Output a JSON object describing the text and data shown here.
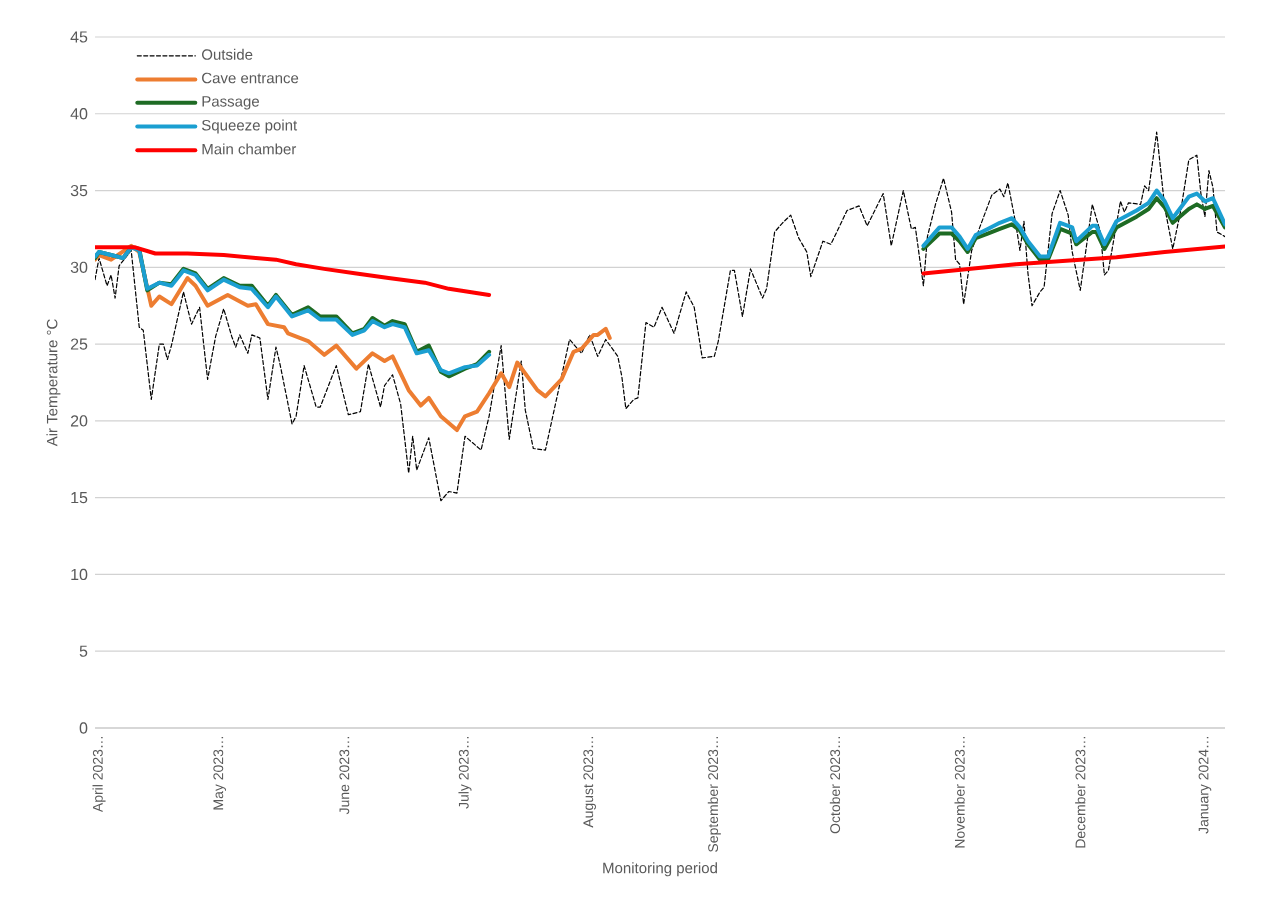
{
  "chart_data": {
    "type": "line",
    "xlabel": "Monitoring period",
    "ylabel": "Air Temperature °C",
    "xlim": [
      "2023-03-31",
      "2024-01-06"
    ],
    "ylim": [
      0,
      45
    ],
    "yticks": [
      0,
      5,
      10,
      15,
      20,
      25,
      30,
      35,
      40,
      45
    ],
    "xticks": [
      {
        "value": "2023-04-01",
        "label": "April 2023…"
      },
      {
        "value": "2023-05-01",
        "label": "May 2023…"
      },
      {
        "value": "2023-06-01",
        "label": "June 2023…"
      },
      {
        "value": "2023-07-01",
        "label": "July 2023…"
      },
      {
        "value": "2023-08-01",
        "label": "August 2023…"
      },
      {
        "value": "2023-09-01",
        "label": "September 2023…"
      },
      {
        "value": "2023-10-01",
        "label": "October 2023…"
      },
      {
        "value": "2023-11-01",
        "label": "November 2023…"
      },
      {
        "value": "2023-12-01",
        "label": "December 2023…"
      },
      {
        "value": "2024-01-01",
        "label": "January 2024…"
      }
    ],
    "grid": "y",
    "legend": "top left",
    "series": [
      {
        "name": "Outside",
        "color": "#000000",
        "line_style": "dashed",
        "x": [
          "2023-03-31",
          "2023-04-01",
          "2023-04-03",
          "2023-04-04",
          "2023-04-05",
          "2023-04-06",
          "2023-04-09",
          "2023-04-11",
          "2023-04-12",
          "2023-04-14",
          "2023-04-16",
          "2023-04-17",
          "2023-04-18",
          "2023-04-19",
          "2023-04-22",
          "2023-04-24",
          "2023-04-26",
          "2023-04-28",
          "2023-04-30",
          "2023-05-02",
          "2023-05-04",
          "2023-05-05",
          "2023-05-06",
          "2023-05-08",
          "2023-05-09",
          "2023-05-11",
          "2023-05-13",
          "2023-05-15",
          "2023-05-16",
          "2023-05-19",
          "2023-05-20",
          "2023-05-22",
          "2023-05-25",
          "2023-05-26",
          "2023-05-30",
          "2023-06-02",
          "2023-06-05",
          "2023-06-07",
          "2023-06-10",
          "2023-06-11",
          "2023-06-13",
          "2023-06-15",
          "2023-06-17",
          "2023-06-18",
          "2023-06-19",
          "2023-06-22",
          "2023-06-25",
          "2023-06-27",
          "2023-06-29",
          "2023-07-01",
          "2023-07-05",
          "2023-07-07",
          "2023-07-10",
          "2023-07-12",
          "2023-07-15",
          "2023-07-16",
          "2023-07-18",
          "2023-07-21",
          "2023-07-27",
          "2023-07-28",
          "2023-07-30",
          "2023-08-01",
          "2023-08-03",
          "2023-08-05",
          "2023-08-08",
          "2023-08-09",
          "2023-08-10",
          "2023-08-12",
          "2023-08-13",
          "2023-08-15",
          "2023-08-17",
          "2023-08-19",
          "2023-08-22",
          "2023-08-25",
          "2023-08-27",
          "2023-08-29",
          "2023-09-01",
          "2023-09-02",
          "2023-09-05",
          "2023-09-06",
          "2023-09-08",
          "2023-09-10",
          "2023-09-13",
          "2023-09-14",
          "2023-09-16",
          "2023-09-18",
          "2023-09-20",
          "2023-09-22",
          "2023-09-24",
          "2023-09-25",
          "2023-09-28",
          "2023-09-30",
          "2023-10-04",
          "2023-10-07",
          "2023-10-09",
          "2023-10-13",
          "2023-10-15",
          "2023-10-18",
          "2023-10-20",
          "2023-10-21",
          "2023-10-23",
          "2023-10-24",
          "2023-10-26",
          "2023-10-28",
          "2023-10-30",
          "2023-10-31",
          "2023-11-01",
          "2023-11-02",
          "2023-11-04",
          "2023-11-06",
          "2023-11-09",
          "2023-11-11",
          "2023-11-12",
          "2023-11-13",
          "2023-11-15",
          "2023-11-16",
          "2023-11-17",
          "2023-11-18",
          "2023-11-19",
          "2023-11-21",
          "2023-11-22",
          "2023-11-24",
          "2023-11-26",
          "2023-11-28",
          "2023-11-29",
          "2023-12-01",
          "2023-12-04",
          "2023-12-06",
          "2023-12-07",
          "2023-12-08",
          "2023-12-11",
          "2023-12-12",
          "2023-12-13",
          "2023-12-16",
          "2023-12-17",
          "2023-12-18",
          "2023-12-20",
          "2023-12-22",
          "2023-12-24",
          "2023-12-26",
          "2023-12-28",
          "2023-12-30",
          "2023-12-31",
          "2024-01-01",
          "2024-01-02",
          "2024-01-03",
          "2024-01-04",
          "2024-01-06"
        ],
        "values": [
          29.2,
          30.6,
          28.8,
          29.5,
          28.0,
          30.1,
          31.1,
          26.1,
          25.9,
          21.4,
          25.0,
          25.0,
          24.0,
          24.9,
          28.4,
          26.3,
          27.4,
          22.7,
          25.5,
          27.3,
          25.5,
          24.8,
          25.6,
          24.4,
          25.6,
          25.4,
          21.4,
          24.8,
          23.7,
          19.8,
          20.3,
          23.6,
          20.9,
          20.9,
          23.6,
          20.4,
          20.6,
          23.7,
          20.9,
          22.3,
          23.0,
          21.1,
          16.6,
          19.0,
          16.8,
          18.9,
          14.8,
          15.4,
          15.3,
          19.0,
          18.1,
          20.3,
          24.9,
          18.8,
          23.9,
          20.7,
          18.2,
          18.1,
          25.3,
          25.0,
          24.4,
          25.6,
          24.2,
          25.3,
          24.2,
          22.9,
          20.8,
          21.4,
          21.5,
          26.4,
          26.1,
          27.4,
          25.7,
          28.4,
          27.4,
          24.1,
          24.2,
          25.2,
          29.8,
          29.8,
          26.8,
          29.9,
          28.0,
          28.6,
          32.3,
          32.9,
          33.4,
          31.9,
          31.0,
          29.4,
          31.7,
          31.5,
          33.7,
          34.0,
          32.7,
          34.8,
          31.4,
          35.0,
          32.5,
          32.6,
          28.8,
          32.0,
          34.1,
          35.8,
          33.6,
          30.5,
          30.2,
          27.6,
          31.1,
          32.6,
          34.7,
          35.1,
          34.6,
          35.5,
          32.8,
          31.1,
          33.0,
          29.6,
          27.5,
          28.4,
          28.7,
          33.5,
          35.0,
          33.4,
          31.0,
          28.5,
          34.1,
          32.3,
          29.5,
          29.8,
          34.3,
          33.6,
          34.2,
          34.1,
          35.3,
          35.0,
          38.8,
          33.9,
          31.2,
          33.7,
          37.0,
          37.3,
          34.8,
          33.3,
          36.3,
          35.2,
          32.3,
          32.0
        ]
      },
      {
        "name": "Cave entrance",
        "color": "#ed7d31",
        "x": [
          "2023-03-31",
          "2023-04-01",
          "2023-04-04",
          "2023-04-09",
          "2023-04-11",
          "2023-04-14",
          "2023-04-16",
          "2023-04-19",
          "2023-04-23",
          "2023-04-25",
          "2023-04-28",
          "2023-05-03",
          "2023-05-08",
          "2023-05-10",
          "2023-05-13",
          "2023-05-17",
          "2023-05-18",
          "2023-05-23",
          "2023-05-27",
          "2023-05-30",
          "2023-06-04",
          "2023-06-08",
          "2023-06-11",
          "2023-06-13",
          "2023-06-17",
          "2023-06-20",
          "2023-06-22",
          "2023-06-25",
          "2023-06-29",
          "2023-07-01",
          "2023-07-04",
          "2023-07-07",
          "2023-07-10",
          "2023-07-12",
          "2023-07-14",
          "2023-07-19",
          "2023-07-21",
          "2023-07-25",
          "2023-07-28",
          "2023-07-30",
          "2023-08-02",
          "2023-08-03",
          "2023-08-05",
          "2023-08-06"
        ],
        "values": [
          30.5,
          30.8,
          30.5,
          31.4,
          31.0,
          27.5,
          28.1,
          27.6,
          29.3,
          28.8,
          27.5,
          28.2,
          27.5,
          27.6,
          26.3,
          26.1,
          25.7,
          25.2,
          24.3,
          24.9,
          23.4,
          24.4,
          23.9,
          24.2,
          22.0,
          21.0,
          21.5,
          20.3,
          19.4,
          20.3,
          20.6,
          21.8,
          23.1,
          22.2,
          23.8,
          22.0,
          21.6,
          22.7,
          24.5,
          24.7,
          25.6,
          25.6,
          26.0,
          25.4
        ]
      },
      {
        "name": "Passage",
        "color": "#1e6b24",
        "x": [
          "2023-03-31",
          "2023-04-01",
          "2023-04-04",
          "2023-04-07",
          "2023-04-09",
          "2023-04-11",
          "2023-04-13",
          "2023-04-16",
          "2023-04-19",
          "2023-04-22",
          "2023-04-25",
          "2023-04-28",
          "2023-05-02",
          "2023-05-06",
          "2023-05-09",
          "2023-05-13",
          "2023-05-15",
          "2023-05-19",
          "2023-05-23",
          "2023-05-26",
          "2023-05-30",
          "2023-06-03",
          "2023-06-06",
          "2023-06-08",
          "2023-06-11",
          "2023-06-13",
          "2023-06-16",
          "2023-06-19",
          "2023-06-22",
          "2023-06-25",
          "2023-06-27",
          "2023-07-01",
          "2023-07-04",
          "2023-07-07",
          "2023-09-01",
          "2023-10-23",
          "2023-10-27",
          "2023-10-30",
          "2023-11-01",
          "2023-11-03",
          "2023-11-05",
          "2023-11-08",
          "2023-11-11",
          "2023-11-14",
          "2023-11-16",
          "2023-11-18",
          "2023-11-21",
          "2023-11-23",
          "2023-11-26",
          "2023-11-29",
          "2023-11-30",
          "2023-12-04",
          "2023-12-05",
          "2023-12-07",
          "2023-12-10",
          "2023-12-15",
          "2023-12-18",
          "2023-12-20",
          "2023-12-22",
          "2023-12-24",
          "2023-12-28",
          "2023-12-30",
          "2024-01-01",
          "2024-01-03",
          "2024-01-06"
        ],
        "values": [
          30.6,
          31.0,
          30.8,
          30.6,
          31.3,
          31.2,
          28.5,
          29.0,
          28.9,
          29.9,
          29.6,
          28.6,
          29.3,
          28.8,
          28.8,
          27.5,
          28.2,
          26.9,
          27.4,
          26.8,
          26.8,
          25.7,
          26.0,
          26.7,
          26.2,
          26.5,
          26.3,
          24.5,
          24.9,
          23.2,
          22.9,
          23.4,
          23.7,
          24.5,
          null,
          31.2,
          32.2,
          32.2,
          31.7,
          31.0,
          31.9,
          32.2,
          32.5,
          32.8,
          32.4,
          31.5,
          30.5,
          30.5,
          32.5,
          32.2,
          31.5,
          32.3,
          32.3,
          31.2,
          32.6,
          33.3,
          33.8,
          34.5,
          33.9,
          32.9,
          33.8,
          34.1,
          33.8,
          34.0,
          32.6
        ]
      },
      {
        "name": "Squeeze point",
        "color": "#1b9fd1",
        "x": [
          "2023-03-31",
          "2023-04-01",
          "2023-04-04",
          "2023-04-07",
          "2023-04-09",
          "2023-04-11",
          "2023-04-13",
          "2023-04-16",
          "2023-04-19",
          "2023-04-22",
          "2023-04-25",
          "2023-04-28",
          "2023-05-02",
          "2023-05-06",
          "2023-05-09",
          "2023-05-13",
          "2023-05-15",
          "2023-05-19",
          "2023-05-23",
          "2023-05-26",
          "2023-05-30",
          "2023-06-03",
          "2023-06-06",
          "2023-06-08",
          "2023-06-11",
          "2023-06-13",
          "2023-06-16",
          "2023-06-19",
          "2023-06-22",
          "2023-06-25",
          "2023-06-27",
          "2023-07-01",
          "2023-07-04",
          "2023-07-07",
          "2023-09-01",
          "2023-10-23",
          "2023-10-27",
          "2023-10-30",
          "2023-11-01",
          "2023-11-03",
          "2023-11-05",
          "2023-11-08",
          "2023-11-11",
          "2023-11-14",
          "2023-11-16",
          "2023-11-18",
          "2023-11-21",
          "2023-11-23",
          "2023-11-26",
          "2023-11-29",
          "2023-11-30",
          "2023-12-04",
          "2023-12-05",
          "2023-12-07",
          "2023-12-10",
          "2023-12-15",
          "2023-12-18",
          "2023-12-20",
          "2023-12-22",
          "2023-12-24",
          "2023-12-28",
          "2023-12-30",
          "2024-01-01",
          "2024-01-03",
          "2024-01-06"
        ],
        "values": [
          30.7,
          31.0,
          30.8,
          30.6,
          31.3,
          31.1,
          28.6,
          29.0,
          28.8,
          29.8,
          29.5,
          28.5,
          29.2,
          28.7,
          28.6,
          27.4,
          28.1,
          26.8,
          27.2,
          26.6,
          26.6,
          25.6,
          25.9,
          26.5,
          26.1,
          26.3,
          26.1,
          24.4,
          24.6,
          23.3,
          23.1,
          23.5,
          23.6,
          24.3,
          null,
          31.4,
          32.6,
          32.6,
          32.0,
          31.2,
          32.1,
          32.5,
          32.9,
          33.2,
          32.6,
          31.7,
          30.7,
          30.7,
          32.9,
          32.6,
          31.7,
          32.7,
          32.7,
          31.5,
          33.0,
          33.7,
          34.2,
          35.0,
          34.3,
          33.2,
          34.6,
          34.8,
          34.3,
          34.5,
          32.8
        ]
      },
      {
        "name": "Main chamber",
        "color": "#ff0000",
        "x": [
          "2023-03-31",
          "2023-04-10",
          "2023-04-15",
          "2023-04-23",
          "2023-05-02",
          "2023-05-10",
          "2023-05-15",
          "2023-05-20",
          "2023-05-27",
          "2023-06-04",
          "2023-06-12",
          "2023-06-21",
          "2023-06-27",
          "2023-07-07",
          "2023-09-01",
          "2023-10-23",
          "2023-11-15",
          "2023-12-10",
          "2023-12-22",
          "2024-01-06"
        ],
        "values": [
          31.3,
          31.3,
          30.9,
          30.9,
          30.8,
          30.6,
          30.5,
          30.2,
          29.9,
          29.6,
          29.3,
          29.0,
          28.6,
          28.2,
          null,
          29.6,
          30.2,
          30.65,
          31.0,
          31.35
        ]
      }
    ]
  }
}
